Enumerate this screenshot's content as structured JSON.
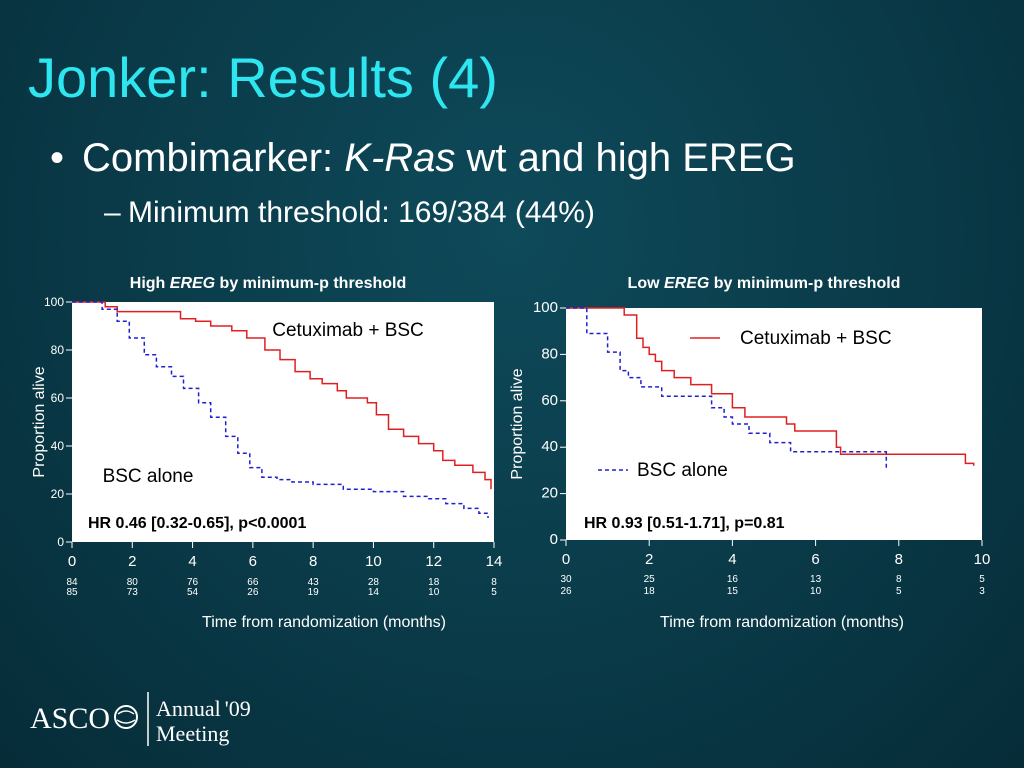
{
  "slide": {
    "title": "Jonker: Results (4)",
    "bullet_prefix": "Combimarker: ",
    "bullet_italic": "K-Ras",
    "bullet_suffix": " wt and high EREG",
    "sub_bullet": "Minimum threshold: 169/384 (44%)",
    "colors": {
      "background": "#0a3a48",
      "title": "#2ee6f0",
      "cetuximab_line": "#e02020",
      "bsc_line": "#2020d0"
    }
  },
  "footer": {
    "org": "ASCO",
    "annual": "Annual",
    "year": "'09",
    "meeting": "Meeting"
  },
  "chart_data": [
    {
      "type": "line",
      "title_prefix": "High ",
      "title_italic": "EREG",
      "title_suffix": " by minimum-p threshold",
      "xlabel": "Time from randomization (months)",
      "ylabel": "Proportion alive",
      "xlim": [
        0,
        14
      ],
      "ylim": [
        0,
        100
      ],
      "x_ticks": [
        0,
        2,
        4,
        6,
        8,
        10,
        12,
        14
      ],
      "y_ticks": [
        0,
        20,
        40,
        60,
        80,
        100
      ],
      "series": [
        {
          "name": "Cetuximab + BSC",
          "style": "solid",
          "x": [
            0,
            1.1,
            1.5,
            3.3,
            3.6,
            4.1,
            4.6,
            5.3,
            5.8,
            6.4,
            6.9,
            7.4,
            7.9,
            8.3,
            8.8,
            9.1,
            9.8,
            10.1,
            10.5,
            11.0,
            11.5,
            12.0,
            12.3,
            12.7,
            13.3,
            13.7,
            13.9
          ],
          "y": [
            100,
            98,
            96,
            96,
            93,
            92,
            90,
            88,
            85,
            80,
            76,
            71,
            68,
            66,
            63,
            60,
            58,
            53,
            47,
            44,
            41,
            38,
            34,
            32,
            29,
            26,
            22
          ]
        },
        {
          "name": "BSC alone",
          "style": "dashed",
          "x": [
            0,
            1.0,
            1.5,
            1.9,
            2.4,
            2.8,
            3.3,
            3.7,
            4.2,
            4.6,
            5.1,
            5.5,
            5.9,
            6.3,
            6.8,
            7.3,
            8.0,
            9.0,
            10.0,
            11.0,
            11.8,
            12.4,
            13.0,
            13.5,
            13.8
          ],
          "y": [
            100,
            97,
            92,
            85,
            78,
            73,
            69,
            64,
            58,
            52,
            44,
            37,
            31,
            27,
            26,
            25,
            24,
            22,
            21,
            19,
            18,
            16,
            14,
            12,
            10
          ]
        }
      ],
      "labels": {
        "cetuximab": "Cetuximab + BSC",
        "bsc": "BSC alone"
      },
      "annotation": "HR 0.46 [0.32-0.65], p<0.0001",
      "at_risk": {
        "x": [
          0,
          2,
          4,
          6,
          8,
          10,
          12,
          14
        ],
        "cetuximab": [
          "84",
          "80",
          "76",
          "66",
          "43",
          "28",
          "18",
          "8"
        ],
        "bsc": [
          "85",
          "73",
          "54",
          "26",
          "19",
          "14",
          "10",
          "5"
        ]
      }
    },
    {
      "type": "line",
      "title_prefix": "Low ",
      "title_italic": "EREG",
      "title_suffix": " by minimum-p threshold",
      "xlabel": "Time from randomization (months)",
      "ylabel": "Proportion alive",
      "xlim": [
        0,
        10
      ],
      "ylim": [
        0,
        100
      ],
      "x_ticks": [
        0,
        2,
        4,
        6,
        8,
        10
      ],
      "y_ticks": [
        0,
        20,
        40,
        60,
        80,
        100
      ],
      "series": [
        {
          "name": "Cetuximab + BSC",
          "style": "solid",
          "x": [
            0,
            1.4,
            1.7,
            1.85,
            2.0,
            2.15,
            2.3,
            2.6,
            3.0,
            3.5,
            4.0,
            4.3,
            5.3,
            5.5,
            6.5,
            6.6,
            9.6,
            9.8
          ],
          "y": [
            100,
            97,
            87,
            83,
            80,
            77,
            73,
            70,
            67,
            63,
            57,
            53,
            50,
            47,
            40,
            37,
            33,
            32
          ]
        },
        {
          "name": "BSC alone",
          "style": "dashed",
          "x": [
            0,
            0.5,
            1.0,
            1.3,
            1.5,
            1.8,
            2.3,
            3.5,
            3.8,
            4.0,
            4.4,
            4.9,
            5.4,
            6.6,
            7.7
          ],
          "y": [
            100,
            89,
            81,
            73,
            70,
            66,
            62,
            57,
            53,
            50,
            46,
            42,
            38,
            38,
            31
          ]
        }
      ],
      "labels": {
        "cetuximab": "Cetuximab + BSC",
        "bsc": "BSC alone"
      },
      "annotation": "HR 0.93 [0.51-1.71], p=0.81",
      "at_risk": {
        "x": [
          0,
          2,
          4,
          6,
          8,
          10
        ],
        "cetuximab": [
          "30",
          "25",
          "16",
          "13",
          "8",
          "5"
        ],
        "bsc": [
          "26",
          "18",
          "15",
          "10",
          "5",
          "3"
        ]
      }
    }
  ]
}
